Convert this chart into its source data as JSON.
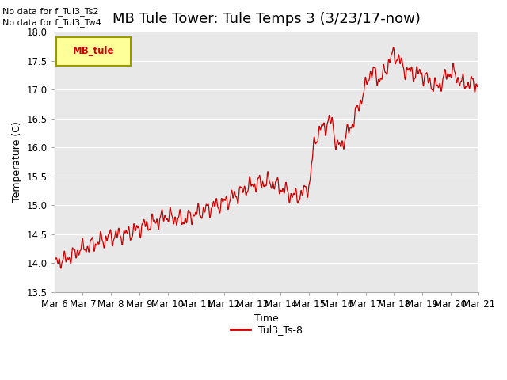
{
  "title": "MB Tule Tower: Tule Temps 3 (3/23/17-now)",
  "xlabel": "Time",
  "ylabel": "Temperature (C)",
  "ylim": [
    13.5,
    18.0
  ],
  "yticks": [
    13.5,
    14.0,
    14.5,
    15.0,
    15.5,
    16.0,
    16.5,
    17.0,
    17.5,
    18.0
  ],
  "xtick_labels": [
    "Mar 6",
    "Mar 7",
    "Mar 8",
    "Mar 9",
    "Mar 10",
    "Mar 11",
    "Mar 12",
    "Mar 13",
    "Mar 14",
    "Mar 15",
    "Mar 16",
    "Mar 17",
    "Mar 18",
    "Mar 19",
    "Mar 20",
    "Mar 21"
  ],
  "line_color": "#cc0000",
  "line_label": "Tul3_Ts-8",
  "annotation_text_1": "No data for f_Tul3_Ts2",
  "annotation_text_2": "No data for f_Tul3_Tw4",
  "legend_label": "MB_tule",
  "legend_bg": "#ffff99",
  "legend_border": "#999900",
  "plot_bg": "#e8e8e8",
  "title_fontsize": 13,
  "axis_fontsize": 9,
  "tick_fontsize": 8.5,
  "waypoints_x": [
    0,
    0.5,
    1.0,
    1.5,
    2.0,
    2.5,
    3.0,
    3.5,
    4.0,
    4.5,
    5.0,
    5.5,
    6.0,
    6.5,
    7.0,
    7.5,
    8.0,
    8.5,
    9.0,
    9.2,
    9.5,
    9.8,
    10.0,
    10.5,
    11.0,
    11.2,
    11.5,
    12.0,
    12.5,
    13.0,
    13.5,
    14.0,
    14.5,
    15.0
  ],
  "waypoints_y": [
    14.0,
    14.1,
    14.25,
    14.35,
    14.45,
    14.5,
    14.6,
    14.7,
    14.8,
    14.75,
    14.85,
    14.95,
    15.05,
    15.2,
    15.35,
    15.4,
    15.3,
    15.15,
    15.35,
    16.1,
    16.35,
    16.45,
    16.0,
    16.4,
    17.05,
    17.3,
    17.2,
    17.6,
    17.3,
    17.25,
    17.05,
    17.3,
    17.1,
    17.1
  ]
}
